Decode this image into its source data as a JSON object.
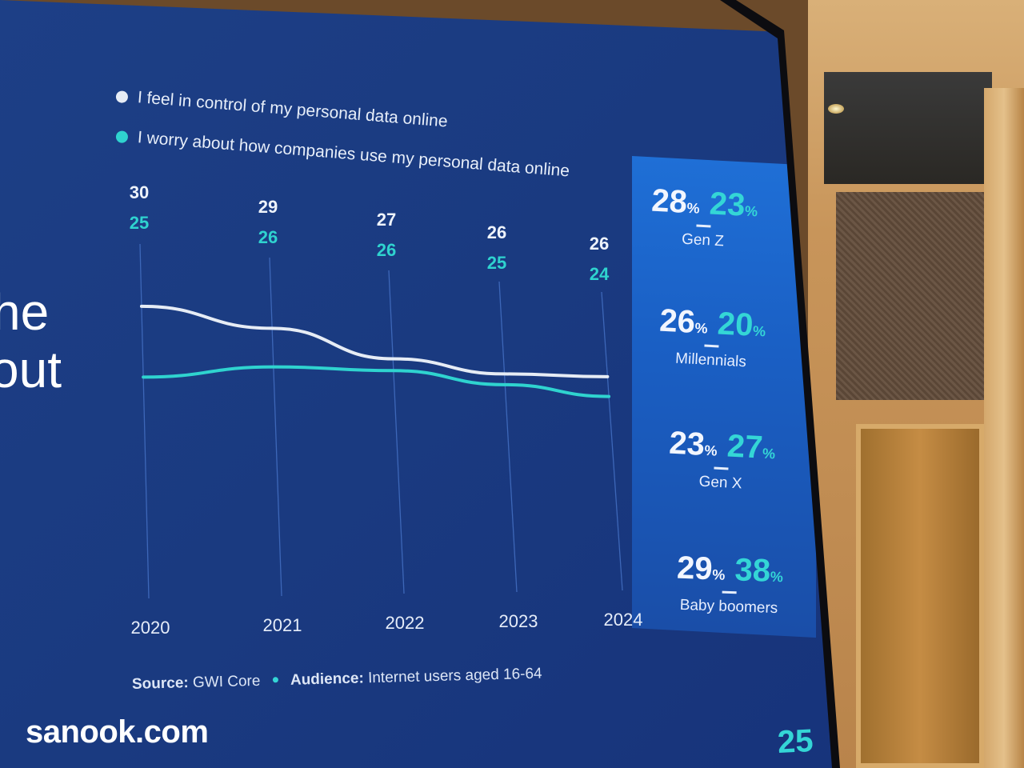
{
  "legend": [
    {
      "label": "I feel in control of my personal data online",
      "color": "#e6ecf5"
    },
    {
      "label": "I worry about how companies use my personal data online",
      "color": "#2fd3cf"
    }
  ],
  "side_text": {
    "line1": "he",
    "line2": "out"
  },
  "chart_data": {
    "type": "line",
    "x": [
      "2020",
      "2021",
      "2022",
      "2023",
      "2024"
    ],
    "series": [
      {
        "name": "I feel in control of my personal data online",
        "values": [
          30,
          29,
          27,
          26,
          26
        ],
        "color": "#e6ecf5"
      },
      {
        "name": "I worry about how companies use my personal data online",
        "values": [
          25,
          26,
          26,
          25,
          24
        ],
        "color": "#2fd3cf"
      }
    ],
    "top_labels_white": [
      "30",
      "29",
      "27",
      "26",
      "26"
    ],
    "top_labels_cyan": [
      "25",
      "26",
      "26",
      "25",
      "24"
    ],
    "grid_vertical": true
  },
  "generations": [
    {
      "control": "28",
      "worry": "23",
      "unit": "%",
      "label": "Gen Z"
    },
    {
      "control": "26",
      "worry": "20",
      "unit": "%",
      "label": "Millennials"
    },
    {
      "control": "23",
      "worry": "27",
      "unit": "%",
      "label": "Gen X"
    },
    {
      "control": "29",
      "worry": "38",
      "unit": "%",
      "label": "Baby boomers"
    }
  ],
  "source": {
    "source_label": "Source:",
    "source_value": "GWI Core",
    "audience_label": "Audience:",
    "audience_value": "Internet users aged 16-64"
  },
  "watermark": "sanook.com",
  "corner_logo": "25"
}
